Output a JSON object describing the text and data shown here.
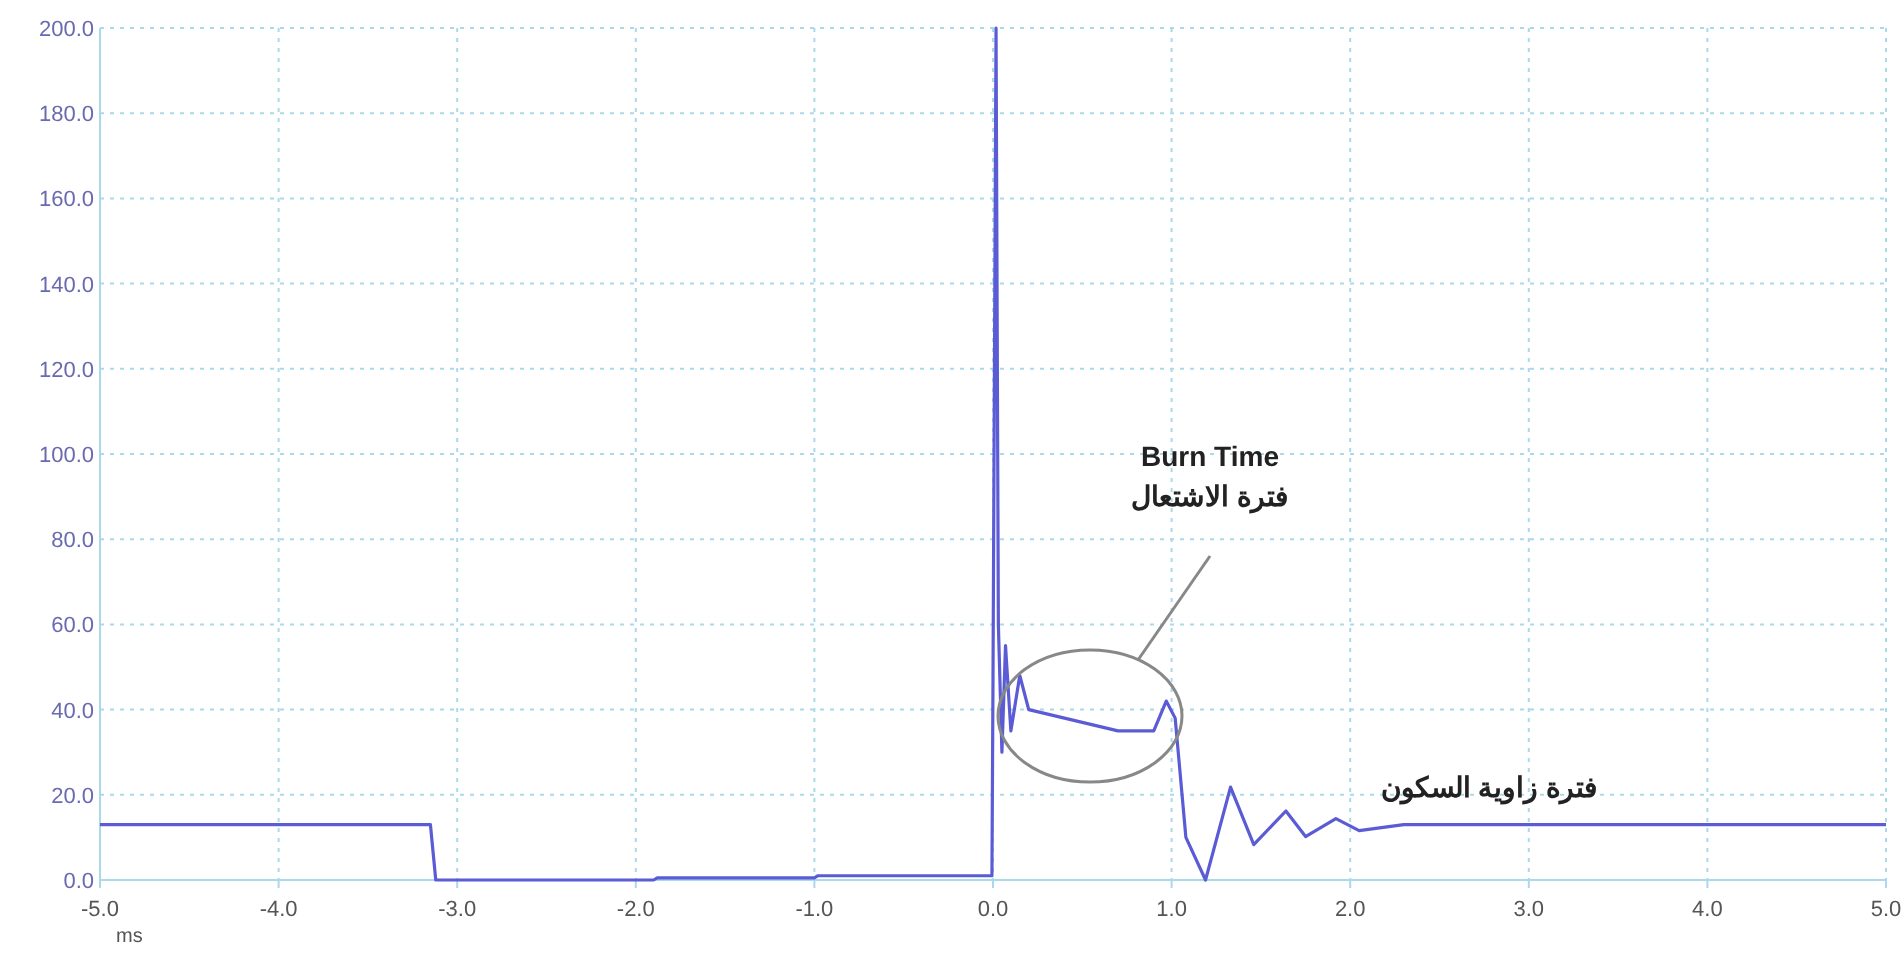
{
  "chart_data": {
    "type": "line",
    "xlabel": "ms",
    "x": [
      -5,
      -3.15,
      -3.12,
      -1.9,
      -1.88,
      -1.0,
      -0.98,
      -0.006,
      0.0,
      0.017,
      0.03,
      0.05,
      0.07,
      0.1,
      0.15,
      0.2,
      0.4,
      0.7,
      0.9,
      0.97,
      1.02,
      1.08,
      1.19,
      1.33,
      1.46,
      1.64,
      1.75,
      1.92,
      2.05,
      2.3,
      5.0
    ],
    "series": [
      {
        "color": "#5b5bd6",
        "values": [
          13,
          13,
          0,
          0,
          0.5,
          0.5,
          1,
          1,
          47,
          200,
          60,
          30,
          55,
          35,
          48,
          40,
          38,
          35,
          35,
          42,
          38,
          10,
          0,
          21.8,
          8.3,
          16.2,
          10.2,
          14.4,
          11.6,
          13,
          13
        ]
      }
    ],
    "xlim": [
      -5,
      5
    ],
    "ylim": [
      0,
      200
    ],
    "xticks": [
      {
        "value": -5,
        "label": "-5.0"
      },
      {
        "value": -4,
        "label": "-4.0"
      },
      {
        "value": -3,
        "label": "-3.0"
      },
      {
        "value": -2,
        "label": "-2.0"
      },
      {
        "value": -1,
        "label": "-1.0"
      },
      {
        "value": 0,
        "label": "0.0"
      },
      {
        "value": 1,
        "label": "1.0"
      },
      {
        "value": 2,
        "label": "2.0"
      },
      {
        "value": 3,
        "label": "3.0"
      },
      {
        "value": 4,
        "label": "4.0"
      },
      {
        "value": 5,
        "label": "5.0"
      }
    ],
    "yticks": [
      {
        "value": 0,
        "label": "0.0"
      },
      {
        "value": 20,
        "label": "20.0"
      },
      {
        "value": 40,
        "label": "40.0"
      },
      {
        "value": 60,
        "label": "60.0"
      },
      {
        "value": 80,
        "label": "80.0"
      },
      {
        "value": 100,
        "label": "100.0"
      },
      {
        "value": 120,
        "label": "120.0"
      },
      {
        "value": 140,
        "label": "140.0"
      },
      {
        "value": 160,
        "label": "160.0"
      },
      {
        "value": 180,
        "label": "180.0"
      },
      {
        "value": 200,
        "label": "200.0"
      }
    ],
    "grid": true,
    "marker": "none",
    "line_style": "solid",
    "annotations": [
      "Burn Time\nفترة الاشتعال",
      {
        "text": "فترة زاوية السكون",
        "x": 2.78,
        "y": 13
      }
    ]
  }
}
